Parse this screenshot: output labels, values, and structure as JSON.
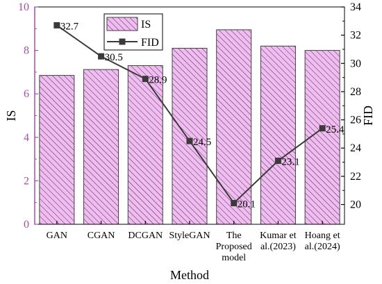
{
  "chart_data": {
    "type": "bar",
    "categories": [
      [
        "GAN"
      ],
      [
        "CGAN"
      ],
      [
        "DCGAN"
      ],
      [
        "StyleGAN"
      ],
      [
        "The",
        "Proposed",
        "model"
      ],
      [
        "Kumar et",
        "al.(2023)"
      ],
      [
        "Hoang et",
        "al.(2024)"
      ]
    ],
    "series": [
      {
        "name": "IS",
        "type": "bar",
        "axis": "left",
        "values": [
          6.85,
          7.12,
          7.3,
          8.1,
          8.95,
          8.2,
          8.0
        ]
      },
      {
        "name": "FID",
        "type": "line",
        "axis": "right",
        "values": [
          32.7,
          30.5,
          28.9,
          24.5,
          20.1,
          23.1,
          25.4
        ],
        "labels": [
          "32.7",
          "30.5",
          "28.9",
          "24.5",
          "20.1",
          "23.1",
          "25.4"
        ]
      }
    ],
    "xlabel": "Method",
    "ylabel_left": "IS",
    "ylabel_right": "FID",
    "ylim_left": [
      0,
      10
    ],
    "yticks_left": [
      0,
      2,
      4,
      6,
      8,
      10
    ],
    "ylim_right": [
      18.6,
      34
    ],
    "yticks_right": [
      20,
      22,
      24,
      26,
      28,
      30,
      32,
      34
    ],
    "legend_position": "top-left",
    "colors": {
      "left_axis": "#a64ca6",
      "bar_fill": "#f0bdf0",
      "bar_hatch": "#4d1f4d",
      "bar_edge": "#404040",
      "line": "#3a3a3a",
      "marker": "#3a3a3a",
      "frame": "#000000"
    }
  }
}
